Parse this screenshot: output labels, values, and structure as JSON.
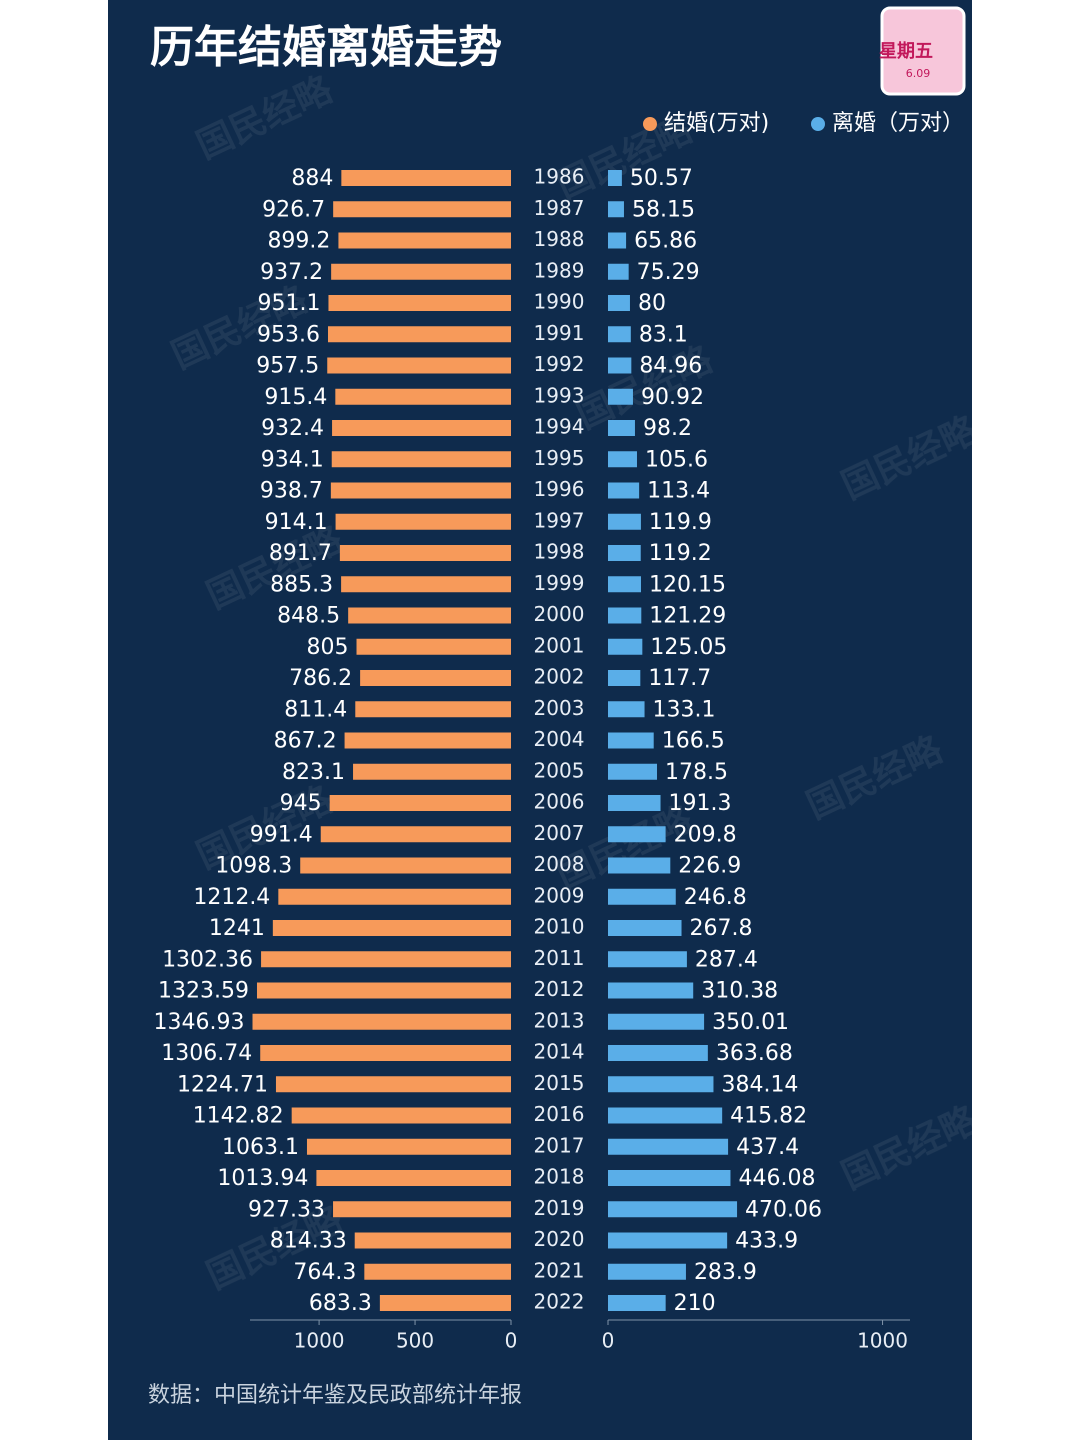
{
  "chart_data": {
    "type": "butterfly_bar",
    "title": "历年结婚离婚走势",
    "categories": [
      "1986",
      "1987",
      "1988",
      "1989",
      "1990",
      "1991",
      "1992",
      "1993",
      "1994",
      "1995",
      "1996",
      "1997",
      "1998",
      "1999",
      "2000",
      "2001",
      "2002",
      "2003",
      "2004",
      "2005",
      "2006",
      "2007",
      "2008",
      "2009",
      "2010",
      "2011",
      "2012",
      "2013",
      "2014",
      "2015",
      "2016",
      "2017",
      "2018",
      "2019",
      "2020",
      "2021",
      "2022"
    ],
    "series": [
      {
        "name": "结婚(万对)",
        "color": "#f79a5a",
        "axis": "x",
        "values": [
          884,
          926.7,
          899.2,
          937.2,
          951.1,
          953.6,
          957.5,
          915.4,
          932.4,
          934.1,
          938.7,
          914.1,
          891.7,
          885.3,
          848.5,
          805,
          786.2,
          811.4,
          867.2,
          823.1,
          945,
          991.4,
          1098.3,
          1212.4,
          1241,
          1302.36,
          1323.59,
          1346.93,
          1306.74,
          1224.71,
          1142.82,
          1063.1,
          1013.94,
          927.33,
          814.33,
          764.3,
          683.3
        ]
      },
      {
        "name": "离婚（万对）",
        "color": "#5aaee8",
        "axis": "x2",
        "values": [
          50.57,
          58.15,
          65.86,
          75.29,
          80,
          83.1,
          84.96,
          90.92,
          98.2,
          105.6,
          113.4,
          119.9,
          119.2,
          120.15,
          121.29,
          125.05,
          117.7,
          133.1,
          166.5,
          178.5,
          191.3,
          209.8,
          226.9,
          246.8,
          267.8,
          287.4,
          310.38,
          350.01,
          363.68,
          384.14,
          415.82,
          437.4,
          446.08,
          470.06,
          433.9,
          283.9,
          210
        ]
      }
    ],
    "xlim": [
      0,
      1360
    ],
    "xticks": [
      0,
      500,
      1000
    ],
    "x2lim": [
      0,
      1100
    ],
    "x2ticks": [
      0,
      1000
    ],
    "legend": "top-right",
    "source": "数据：中国统计年鉴及民政部统计年报"
  },
  "watermark": "国民经略",
  "sticker": {
    "day": "星期五",
    "date": "6.09"
  }
}
